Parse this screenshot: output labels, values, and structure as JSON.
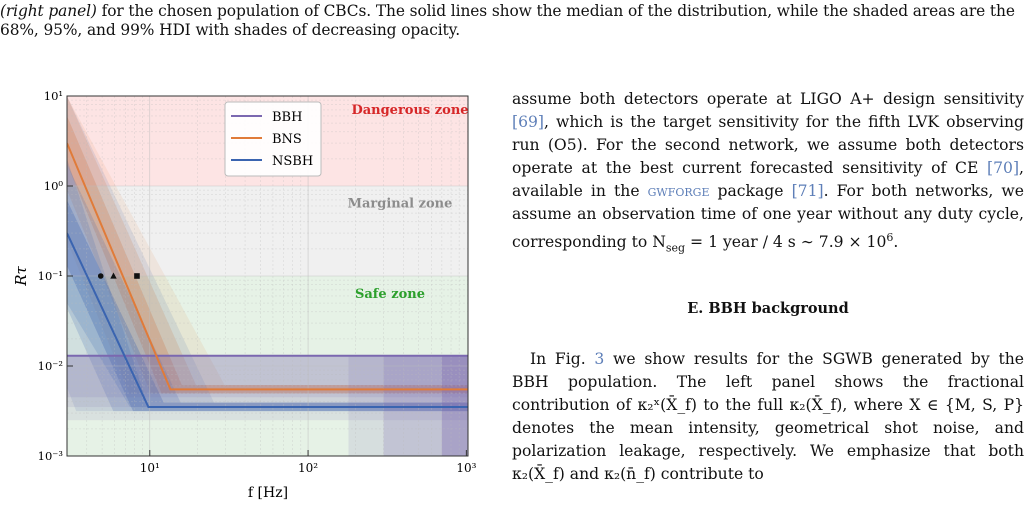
{
  "caption": {
    "italic": "(right panel)",
    "rest": " for the chosen population of CBCs. The solid lines show the median of the distribution, while the shaded areas are the 68%, 95%, and 99% HDI with shades of decreasing opacity."
  },
  "chart_data": {
    "type": "line",
    "xlabel": "f [Hz]",
    "ylabel": "Rτ",
    "x_scale": "log",
    "y_scale": "log",
    "xlim": [
      3,
      1024
    ],
    "ylim": [
      0.001,
      10
    ],
    "x_ticks": [
      "10¹",
      "10²",
      "10³"
    ],
    "y_ticks": [
      "10⁻³",
      "10⁻²",
      "10⁻¹",
      "10⁰",
      "10¹"
    ],
    "grid": true,
    "legend_placement": "top-center",
    "zones": [
      {
        "label": "Dangerous zone",
        "from": 1,
        "to": 10,
        "color": "#fde4e4",
        "label_color": "#d62728"
      },
      {
        "label": "Marginal zone",
        "from": 0.1,
        "to": 1,
        "color": "#f0f0f0",
        "label_color": "#8c8c8c"
      },
      {
        "label": "Safe zone",
        "from": 0.001,
        "to": 0.1,
        "color": "#e6f2e6",
        "label_color": "#2ca02c"
      }
    ],
    "series": [
      {
        "name": "BBH",
        "color": "#7b68b0",
        "x": [
          3,
          4.5,
          6.9,
          1024
        ],
        "y": [
          0.013,
          0.013,
          0.013,
          0.013
        ]
      },
      {
        "name": "BNS",
        "color": "#e07b39",
        "x": [
          3,
          13.5,
          1024
        ],
        "y": [
          3.0,
          0.0055,
          0.0055
        ]
      },
      {
        "name": "NSBH",
        "color": "#3a64b0",
        "x": [
          3,
          9.8,
          1024
        ],
        "y": [
          0.3,
          0.0035,
          0.0035
        ]
      }
    ],
    "markers": [
      {
        "shape": "circle",
        "x": 4.9,
        "y": 0.1
      },
      {
        "shape": "triangle",
        "x": 5.9,
        "y": 0.1
      },
      {
        "shape": "square",
        "x": 8.3,
        "y": 0.1
      }
    ]
  },
  "right": {
    "p1_a": "assume both detectors operate at LIGO A+ design sensitivity ",
    "p1_ref1": "[69]",
    "p1_b": ", which is the target sensitivity for the fifth LVK observing run (O5). For the second network, we assume both detectors operate at the best current forecasted sensitivity of CE ",
    "p1_ref2": "[70]",
    "p1_c": ", available in the ",
    "p1_pkg": "gwforge",
    "p1_d": " package ",
    "p1_ref3": "[71]",
    "p1_e": ". For both networks, we assume an observation time of one year without any duty cycle, corresponding to N",
    "p1_sub": "seg",
    "p1_f": " = 1 year / 4 s ∼ 7.9 × 10",
    "p1_sup": "6",
    "p1_g": ".",
    "section": "E.   BBH background",
    "p2_a": "In Fig. ",
    "p2_ref": "3",
    "p2_b": " we show results for the SGWB generated by the BBH population. The left panel shows the fractional contribution of κ₂ˣ(X̄_f) to the full κ₂(X̄_f), where X ∈ {M, S, P} denotes the mean intensity, geometrical shot noise, and polarization leakage, respectively. We emphasize that both κ₂(X̄_f) and κ₂(n̄_f) contribute to"
  }
}
